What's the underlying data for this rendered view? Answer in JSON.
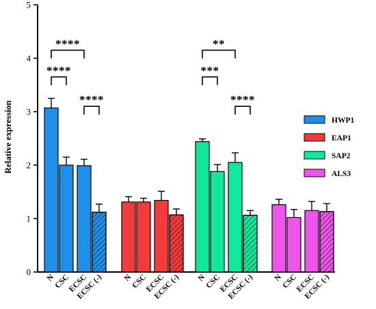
{
  "chart_data": {
    "type": "bar",
    "ylabel": "Relative expression",
    "ylim": [
      0,
      5
    ],
    "yticks": [
      "0",
      "1",
      "2",
      "3",
      "4",
      "5"
    ],
    "grid": false,
    "legend_placement": "right",
    "categories": [
      "N",
      "CSC",
      "ECSC",
      "ECSC (-)"
    ],
    "series": [
      {
        "name": "HWP1",
        "color": "#1f8fe8",
        "values": [
          3.07,
          2.0,
          1.99,
          1.12
        ],
        "errors": [
          0.18,
          0.15,
          0.12,
          0.15
        ]
      },
      {
        "name": "EAP1",
        "color": "#f23c3c",
        "values": [
          1.31,
          1.31,
          1.34,
          1.07
        ],
        "errors": [
          0.1,
          0.07,
          0.17,
          0.11
        ]
      },
      {
        "name": "SAP2",
        "color": "#12e89a",
        "values": [
          2.44,
          1.88,
          2.05,
          1.06
        ],
        "errors": [
          0.05,
          0.13,
          0.18,
          0.09
        ]
      },
      {
        "name": "ALS3",
        "color": "#ee55ea",
        "values": [
          1.26,
          1.02,
          1.15,
          1.13
        ],
        "errors": [
          0.1,
          0.15,
          0.17,
          0.15
        ]
      }
    ],
    "hatched_category": "ECSC (-)",
    "annotations": [
      {
        "series": "HWP1",
        "from": "N",
        "to": "CSC",
        "level": 3.65,
        "label": "****"
      },
      {
        "series": "HWP1",
        "from": "N",
        "to": "ECSC",
        "level": 4.15,
        "label": "****"
      },
      {
        "series": "HWP1",
        "from": "ECSC",
        "to": "ECSC (-)",
        "level": 3.1,
        "label": "****"
      },
      {
        "series": "SAP2",
        "from": "N",
        "to": "CSC",
        "level": 3.65,
        "label": "***"
      },
      {
        "series": "SAP2",
        "from": "N",
        "to": "ECSC",
        "level": 4.15,
        "label": "**"
      },
      {
        "series": "SAP2",
        "from": "ECSC",
        "to": "ECSC (-)",
        "level": 3.1,
        "label": "****"
      }
    ]
  }
}
